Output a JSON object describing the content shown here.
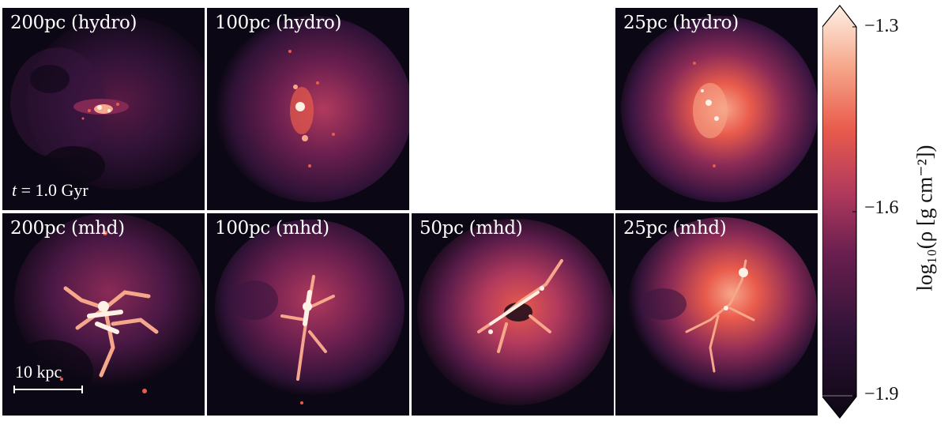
{
  "figure": {
    "colormap": [
      "#0c0714",
      "#2f1236",
      "#6a1f4f",
      "#b23a5d",
      "#e95b4c",
      "#f6a68a",
      "#fdf0e4"
    ],
    "panels": [
      {
        "id": "r1c1",
        "label": "200pc (hydro)",
        "row": 1,
        "col": 1
      },
      {
        "id": "r1c2",
        "label": "100pc (hydro)",
        "row": 1,
        "col": 2
      },
      {
        "id": "r1c3",
        "label": "",
        "row": 1,
        "col": 3,
        "empty": true
      },
      {
        "id": "r1c4",
        "label": "25pc (hydro)",
        "row": 1,
        "col": 4
      },
      {
        "id": "r2c1",
        "label": "200pc (mhd)",
        "row": 2,
        "col": 1
      },
      {
        "id": "r2c2",
        "label": "100pc (mhd)",
        "row": 2,
        "col": 2
      },
      {
        "id": "r2c3",
        "label": "50pc (mhd)",
        "row": 2,
        "col": 3
      },
      {
        "id": "r2c4",
        "label": "25pc (mhd)",
        "row": 2,
        "col": 4
      }
    ],
    "time_annotation": {
      "symbol": "t",
      "text": " = 1.0 Gyr"
    },
    "scale_bar_label": "10 kpc",
    "colorbar": {
      "ticks": [
        "−1.3",
        "−1.6",
        "−1.9"
      ],
      "label": "log₁₀(ρ [g cm⁻²])",
      "range": [
        -1.9,
        -1.3
      ]
    }
  }
}
